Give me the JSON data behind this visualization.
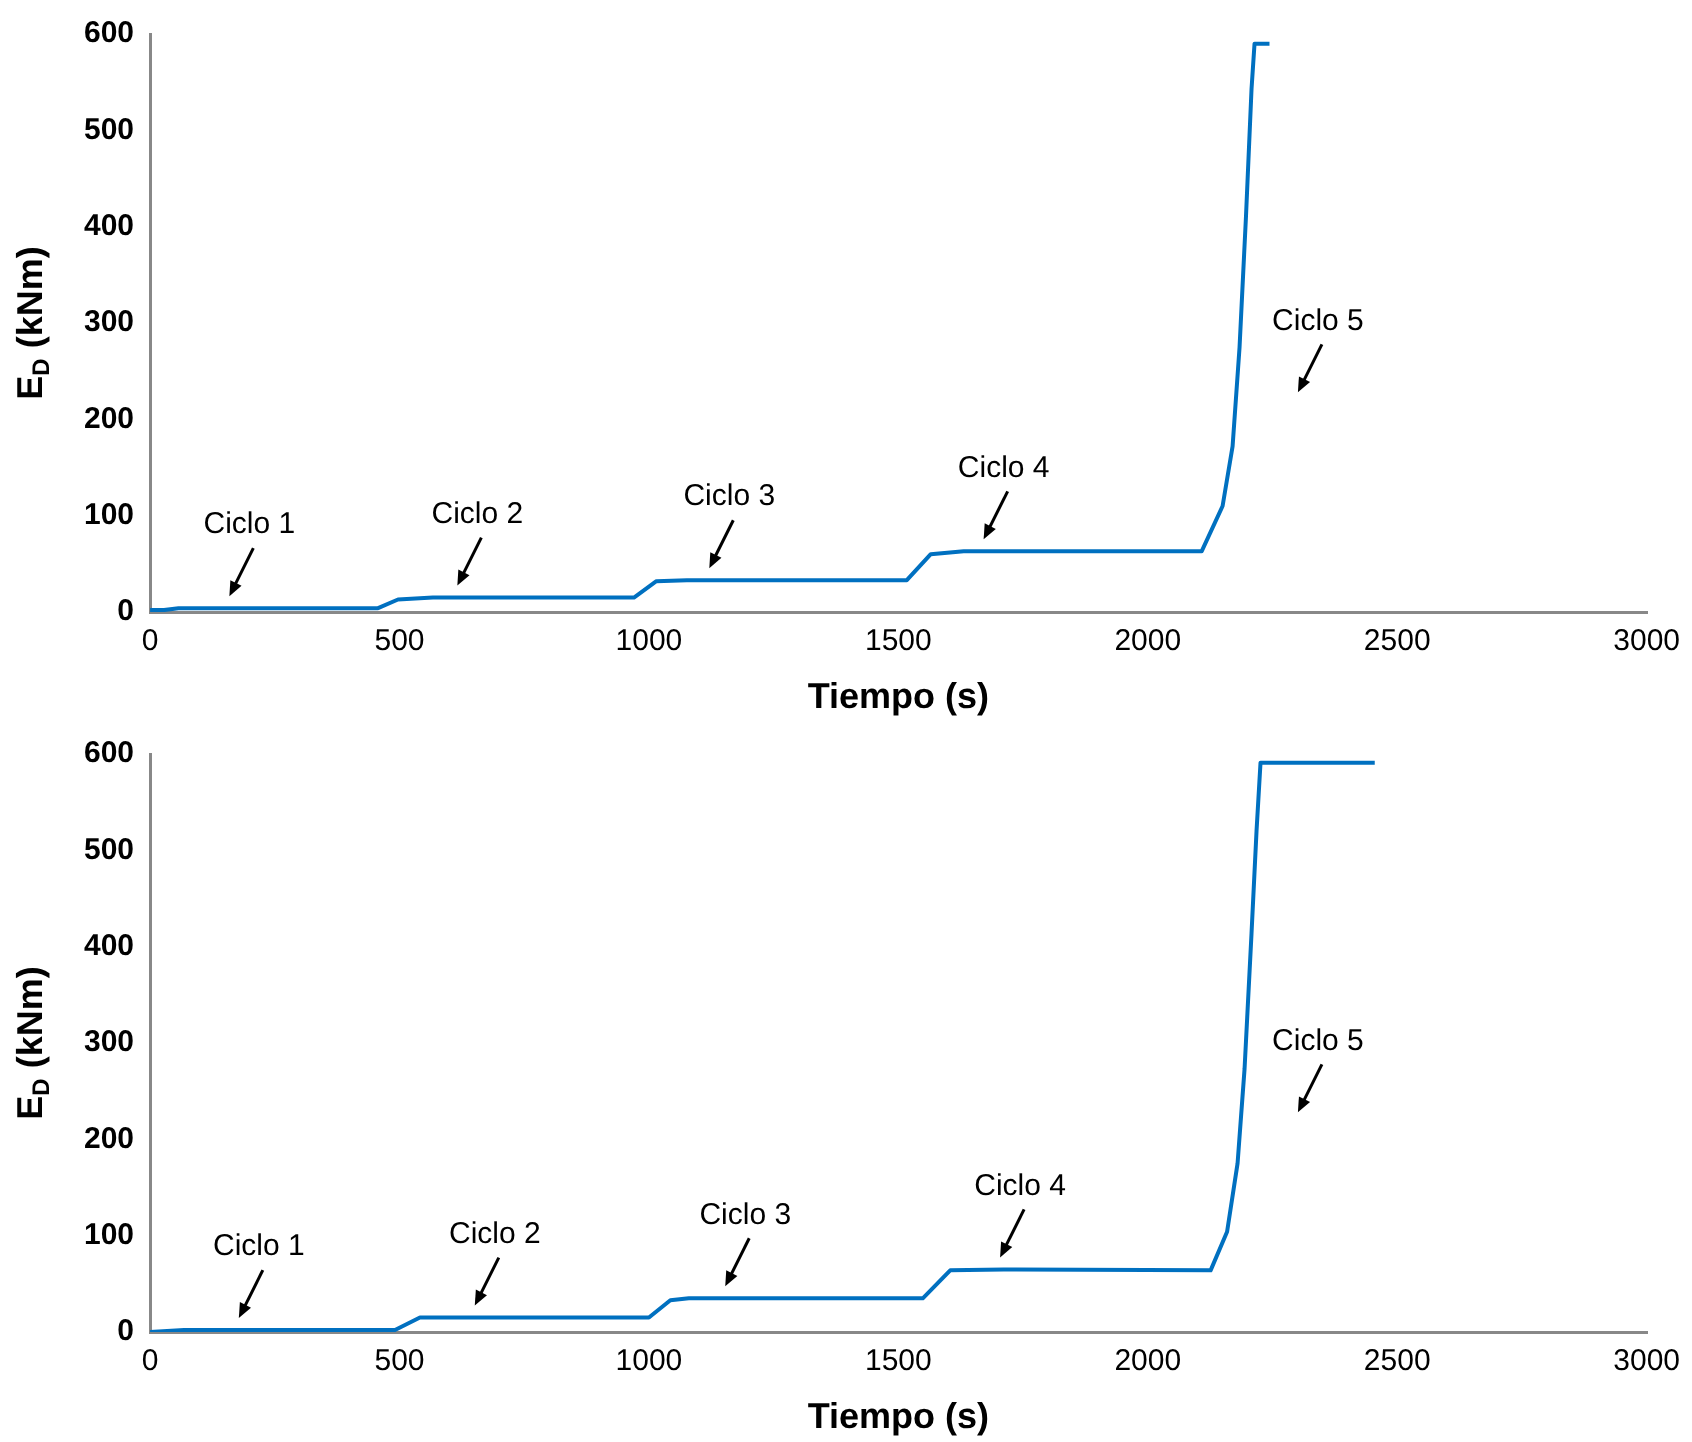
{
  "chart_data": [
    {
      "type": "line",
      "xlabel": "Tiempo (s)",
      "ylabel": "E$_{D}$ (kNm)",
      "color": "#0070c0",
      "x": [
        0,
        28,
        57,
        457,
        497,
        567,
        970,
        1015,
        1076,
        1517,
        1565,
        1631,
        2108,
        2150,
        2170,
        2184,
        2197,
        2208,
        2214,
        2244
      ],
      "values": [
        2,
        2,
        4,
        4,
        13,
        15,
        15,
        32,
        33,
        33,
        60,
        63,
        63,
        110,
        172,
        275,
        412,
        543,
        590,
        590
      ],
      "xlim": [
        0,
        3000
      ],
      "xticks": [
        0,
        500,
        1000,
        1500,
        2000,
        2500,
        3000
      ],
      "ylim": [
        0,
        600
      ],
      "yticks": [
        0,
        100,
        200,
        300,
        400,
        500,
        600
      ],
      "grid": false,
      "legend": false,
      "marker": "none",
      "line_style": "solid",
      "annotations": [
        {
          "text": "Ciclo 1",
          "x": 159,
          "y": 4
        },
        {
          "text": "Ciclo 2",
          "x": 616,
          "y": 15
        },
        {
          "text": "Ciclo 3",
          "x": 1121,
          "y": 33
        },
        {
          "text": "Ciclo 4",
          "x": 1671,
          "y": 63
        },
        "Ciclo 5"
      ]
    },
    {
      "type": "line",
      "xlabel": "Tiempo (s)",
      "ylabel": "E$_{D}$ (kNm)",
      "color": "#0070c0",
      "x": [
        0,
        68,
        491,
        541,
        1000,
        1043,
        1080,
        1549,
        1604,
        1711,
        2126,
        2159,
        2180,
        2194,
        2208,
        2218,
        2226,
        2455
      ],
      "values": [
        0,
        2,
        2,
        15,
        15,
        33,
        35,
        35,
        64,
        65,
        64,
        104,
        175,
        273,
        414,
        520,
        591,
        591
      ],
      "xlim": [
        0,
        3000
      ],
      "xticks": [
        0,
        500,
        1000,
        1500,
        2000,
        2500,
        3000
      ],
      "ylim": [
        0,
        600
      ],
      "yticks": [
        0,
        100,
        200,
        300,
        400,
        500,
        600
      ],
      "grid": false,
      "legend": false,
      "marker": "none",
      "line_style": "solid",
      "annotations": [
        {
          "text": "Ciclo 1",
          "x": 178,
          "y": 2
        },
        {
          "text": "Ciclo 2",
          "x": 651,
          "y": 15
        },
        {
          "text": "Ciclo 3",
          "x": 1153,
          "y": 35
        },
        {
          "text": "Ciclo 4",
          "x": 1704,
          "y": 65
        },
        "Ciclo 5"
      ]
    }
  ]
}
